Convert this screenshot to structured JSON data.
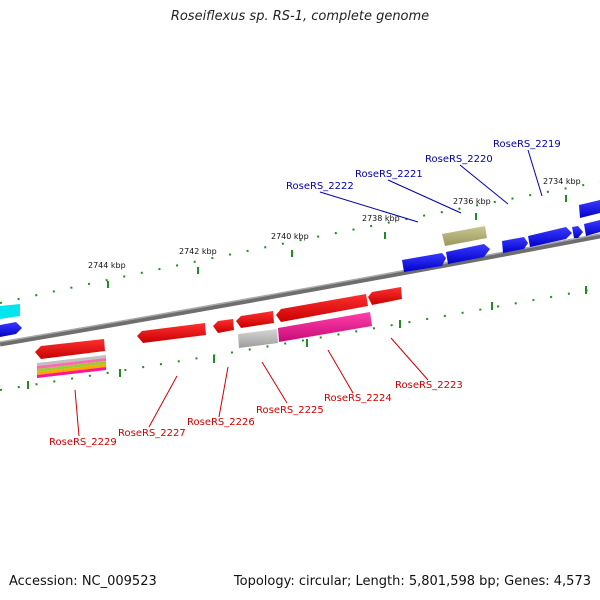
{
  "title": "Roseiflexus sp. RS-1, complete genome",
  "footer": {
    "accession": "Accession: NC_009523",
    "topology": "Topology: circular; Length: 5,801,598 bp; Genes: 4,573"
  },
  "ticks": [
    {
      "label": "2734 kbp"
    },
    {
      "label": "2736 kbp"
    },
    {
      "label": "2738 kbp"
    },
    {
      "label": "2740 kbp"
    },
    {
      "label": "2742 kbp"
    },
    {
      "label": "2744 kbp"
    }
  ],
  "gene_labels": {
    "forward": [
      "RoseRS_2219",
      "RoseRS_2220",
      "RoseRS_2221",
      "RoseRS_2222"
    ],
    "reverse": [
      "RoseRS_2223",
      "RoseRS_2224",
      "RoseRS_2225",
      "RoseRS_2226",
      "RoseRS_2227",
      "RoseRS_2229"
    ]
  },
  "colors": {
    "forward_cds": "#0000ee",
    "reverse_cds": "#ee0000",
    "forward_label": "#0000aa",
    "reverse_label": "#cc0000",
    "backbone": "#808080",
    "tick_marks": "#228b22",
    "khaki_feature": "#b5b37a",
    "gray_feature": "#b8b8b8",
    "magenta_feature": "#ee1493",
    "cyan_feature": "#00e5ee"
  }
}
